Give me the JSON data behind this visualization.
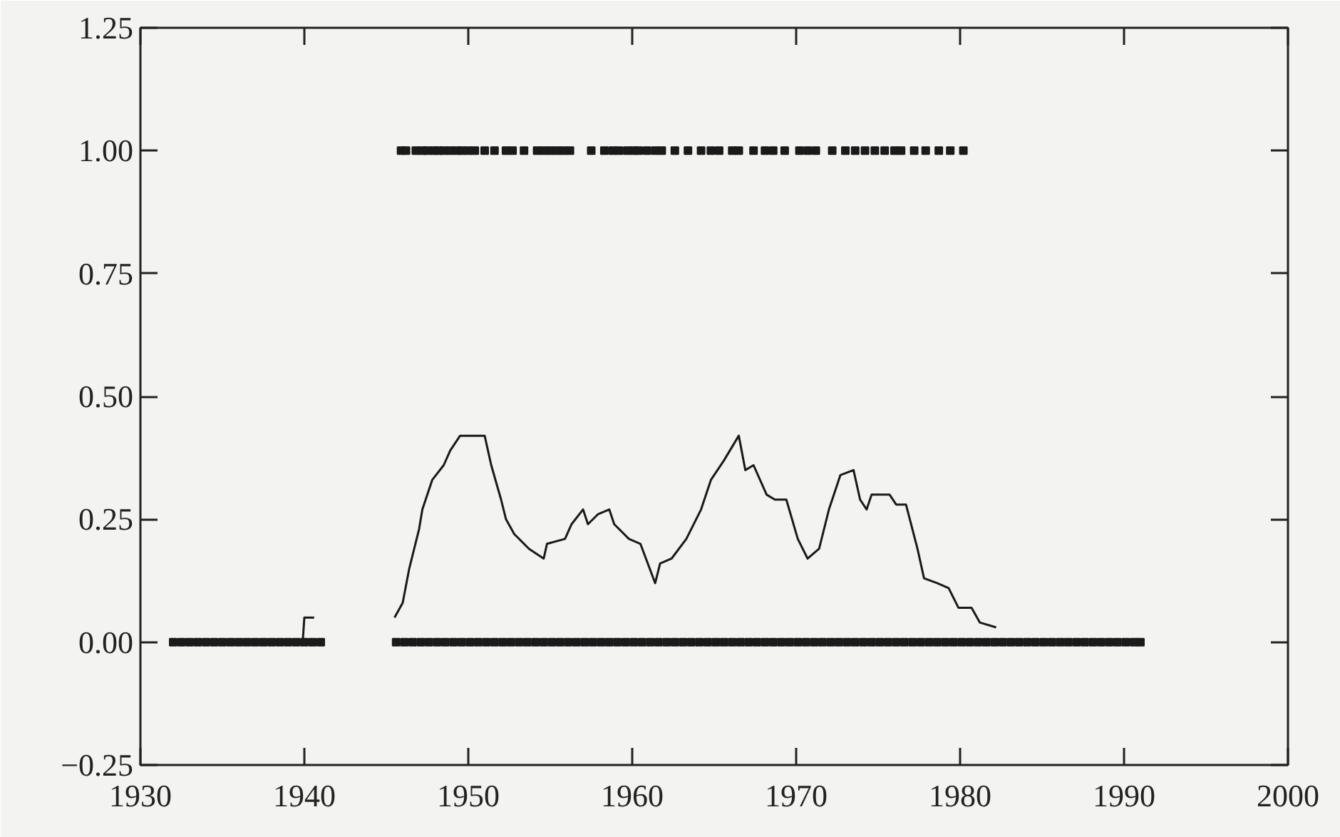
{
  "chart_data": {
    "type": "scatter",
    "marker": "square",
    "line_style": "solid",
    "grid": false,
    "xlim": [
      1930,
      2000
    ],
    "ylim": [
      -0.25,
      1.25
    ],
    "xticks": [
      1930,
      1940,
      1950,
      1960,
      1970,
      1980,
      1990,
      2000
    ],
    "yticks": [
      {
        "value": -0.25,
        "label": "−0.25"
      },
      {
        "value": 0,
        "label": "0.00"
      },
      {
        "value": 0.25,
        "label": "0.25"
      },
      {
        "value": 0.5,
        "label": "0.50"
      },
      {
        "value": 0.75,
        "label": "0.75"
      },
      {
        "value": 1.0,
        "label": "1.00"
      },
      {
        "value": 1.25,
        "label": "1.25"
      }
    ],
    "series": [
      {
        "color": "#1a1a1a",
        "x": [
          1932.0,
          1932.5,
          1933.0,
          1933.5,
          1934.0,
          1934.5,
          1935.0,
          1935.5,
          1936.0,
          1936.5,
          1937.0,
          1937.5,
          1938.0,
          1938.5,
          1939.0,
          1939.5,
          1940.0,
          1940.5,
          1941.0,
          1945.6,
          1946.1,
          1946.6,
          1947.1,
          1947.6,
          1948.1,
          1948.6,
          1949.1,
          1949.6,
          1950.1,
          1950.6,
          1951.1,
          1951.6,
          1952.1,
          1952.6,
          1953.1,
          1953.6,
          1954.1,
          1954.6,
          1955.1,
          1955.6,
          1956.1,
          1956.6,
          1957.1,
          1957.6,
          1958.1,
          1958.6,
          1959.1,
          1959.6,
          1960.1,
          1960.6,
          1961.1,
          1961.6,
          1962.1,
          1962.6,
          1963.1,
          1963.6,
          1964.1,
          1964.6,
          1965.1,
          1965.6,
          1966.1,
          1966.6,
          1967.1,
          1967.6,
          1968.1,
          1968.6,
          1969.1,
          1969.6,
          1970.1,
          1970.6,
          1971.1,
          1971.6,
          1972.1,
          1972.6,
          1973.1,
          1973.6,
          1974.1,
          1974.6,
          1975.1,
          1975.6,
          1976.1,
          1976.6,
          1977.1,
          1977.6,
          1978.1,
          1978.6,
          1979.1,
          1979.6,
          1980.1,
          1980.6,
          1981.1,
          1981.6,
          1982.1,
          1982.6,
          1983.1,
          1983.6,
          1984.1,
          1984.6,
          1985.1,
          1985.6,
          1986.1,
          1986.6,
          1987.1,
          1987.6,
          1988.1,
          1988.6,
          1989.1,
          1989.6,
          1990.1,
          1990.6,
          1991.0
        ],
        "values": [
          0,
          0,
          0,
          0,
          0,
          0,
          0,
          0,
          0,
          0,
          0,
          0,
          0,
          0,
          0,
          0,
          0,
          0,
          0,
          0,
          0,
          0,
          0,
          0,
          0,
          0,
          0,
          0,
          0,
          0,
          0,
          0,
          0,
          0,
          0,
          0,
          0,
          0,
          0,
          0,
          0,
          0,
          0,
          0,
          0,
          0,
          0,
          0,
          0,
          0,
          0,
          0,
          0,
          0,
          0,
          0,
          0,
          0,
          0,
          0,
          0,
          0,
          0,
          0,
          0,
          0,
          0,
          0,
          0,
          0,
          0,
          0,
          0,
          0,
          0,
          0,
          0,
          0,
          0,
          0,
          0,
          0,
          0,
          0,
          0,
          0,
          0,
          0,
          0,
          0,
          0,
          0,
          0,
          0,
          0,
          0,
          0,
          0,
          0,
          0,
          0,
          0,
          0,
          0,
          0,
          0,
          0,
          0,
          0,
          0,
          0
        ]
      },
      {
        "color": "#1a1a1a",
        "x": [
          1945.9,
          1946.2,
          1946.8,
          1947.2,
          1947.5,
          1947.9,
          1948.2,
          1948.5,
          1948.9,
          1949.3,
          1949.6,
          1950.0,
          1950.4,
          1951.0,
          1951.6,
          1952.3,
          1952.7,
          1953.4,
          1954.2,
          1954.6,
          1955.0,
          1955.4,
          1955.8,
          1956.2,
          1957.5,
          1958.3,
          1958.8,
          1959.2,
          1959.7,
          1960.1,
          1960.4,
          1960.9,
          1961.4,
          1961.8,
          1962.6,
          1963.4,
          1964.2,
          1964.8,
          1965.3,
          1966.1,
          1966.5,
          1967.4,
          1968.1,
          1968.6,
          1969.3,
          1970.2,
          1970.7,
          1971.2,
          1972.2,
          1973.0,
          1973.6,
          1974.2,
          1974.8,
          1975.4,
          1976.0,
          1976.4,
          1977.2,
          1977.9,
          1978.7,
          1979.4,
          1980.2
        ],
        "values": [
          1,
          1,
          1,
          1,
          1,
          1,
          1,
          1,
          1,
          1,
          1,
          1,
          1,
          1,
          1,
          1,
          1,
          1,
          1,
          1,
          1,
          1,
          1,
          1,
          1,
          1,
          1,
          1,
          1,
          1,
          1,
          1,
          1,
          1,
          1,
          1,
          1,
          1,
          1,
          1,
          1,
          1,
          1,
          1,
          1,
          1,
          1,
          1,
          1,
          1,
          1,
          1,
          1,
          1,
          1,
          1,
          1,
          1,
          1,
          1,
          1
        ]
      },
      {
        "type": "line",
        "color": "#1a1a1a",
        "marker": "none",
        "x": [
          1939.9,
          1940.0,
          1940.6,
          1943.0,
          1945.5,
          1946.0,
          1946.4,
          1947.0,
          1947.2,
          1947.8,
          1948.5,
          1948.9,
          1949.5,
          1951.0,
          1951.4,
          1952.0,
          1952.3,
          1952.8,
          1953.7,
          1954.6,
          1954.8,
          1955.9,
          1956.3,
          1957.0,
          1957.3,
          1957.9,
          1958.6,
          1958.9,
          1959.8,
          1960.5,
          1961.4,
          1961.7,
          1962.4,
          1963.3,
          1964.2,
          1964.8,
          1965.6,
          1966.5,
          1966.9,
          1967.4,
          1968.2,
          1968.7,
          1969.4,
          1970.1,
          1970.7,
          1971.4,
          1972.0,
          1972.7,
          1973.5,
          1973.9,
          1974.3,
          1974.6,
          1975.7,
          1976.1,
          1976.7,
          1977.4,
          1977.8,
          1978.6,
          1979.3,
          1979.9,
          1980.7,
          1981.2,
          1982.2
        ],
        "values": [
          0.0,
          0.05,
          0.05,
          null,
          0.05,
          0.08,
          0.15,
          0.23,
          0.27,
          0.33,
          0.36,
          0.39,
          0.42,
          0.42,
          0.36,
          0.29,
          0.25,
          0.22,
          0.19,
          0.17,
          0.2,
          0.21,
          0.24,
          0.27,
          0.24,
          0.26,
          0.27,
          0.24,
          0.21,
          0.2,
          0.12,
          0.16,
          0.17,
          0.21,
          0.27,
          0.33,
          0.37,
          0.42,
          0.35,
          0.36,
          0.3,
          0.29,
          0.29,
          0.21,
          0.17,
          0.19,
          0.27,
          0.34,
          0.35,
          0.29,
          0.27,
          0.3,
          0.3,
          0.28,
          0.28,
          0.19,
          0.13,
          0.12,
          0.11,
          0.07,
          0.07,
          0.04,
          0.03
        ]
      }
    ]
  }
}
